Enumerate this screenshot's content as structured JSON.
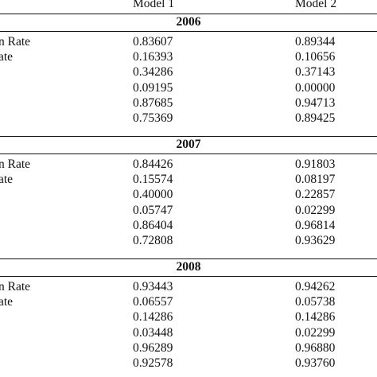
{
  "header": {
    "col1": "Model 1",
    "col2": "Model 2"
  },
  "sections": [
    {
      "year": "2006",
      "rows": [
        {
          "label": "n Rate",
          "m1": "0.83607",
          "m2": "0.89344"
        },
        {
          "label": "ate",
          "m1": "0.16393",
          "m2": "0.10656"
        },
        {
          "label": "",
          "m1": "0.34286",
          "m2": "0.37143"
        },
        {
          "label": "",
          "m1": "0.09195",
          "m2": "0.00000"
        },
        {
          "label": "",
          "m1": "0.87685",
          "m2": "0.94713"
        },
        {
          "label": "",
          "m1": "0.75369",
          "m2": "0.89425"
        }
      ]
    },
    {
      "year": "2007",
      "rows": [
        {
          "label": "n Rate",
          "m1": "0.84426",
          "m2": "0.91803"
        },
        {
          "label": "ate",
          "m1": "0.15574",
          "m2": "0.08197"
        },
        {
          "label": "",
          "m1": "0.40000",
          "m2": "0.22857"
        },
        {
          "label": "",
          "m1": "0.05747",
          "m2": "0.02299"
        },
        {
          "label": "",
          "m1": "0.86404",
          "m2": "0.96814"
        },
        {
          "label": "",
          "m1": "0.72808",
          "m2": "0.93629"
        }
      ]
    },
    {
      "year": "2008",
      "rows": [
        {
          "label": "n Rate",
          "m1": "0.93443",
          "m2": "0.94262"
        },
        {
          "label": "ate",
          "m1": "0.06557",
          "m2": "0.05738"
        },
        {
          "label": "",
          "m1": "0.14286",
          "m2": "0.14286"
        },
        {
          "label": "",
          "m1": "0.03448",
          "m2": "0.02299"
        },
        {
          "label": "",
          "m1": "0.96289",
          "m2": "0.96880"
        },
        {
          "label": "",
          "m1": "0.92578",
          "m2": "0.93760"
        }
      ]
    }
  ]
}
